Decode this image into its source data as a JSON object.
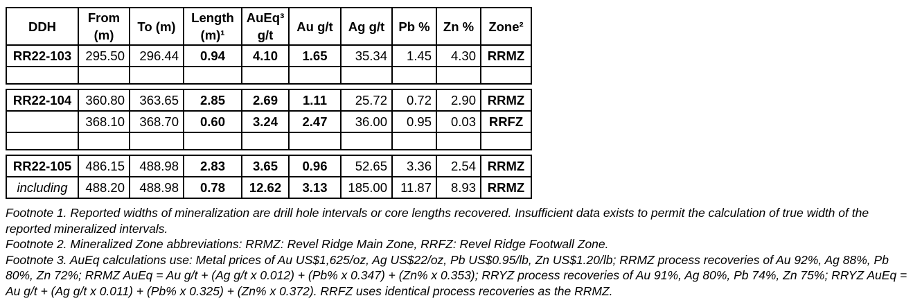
{
  "table": {
    "headers": [
      "DDH",
      "From\n(m)",
      "To (m)",
      "Length\n(m)¹",
      "AuEq³\ng/t",
      "Au g/t",
      "Ag g/t",
      "Pb %",
      "Zn %",
      "Zone²"
    ],
    "rows": {
      "r103": [
        "RR22-103",
        "295.50",
        "296.44",
        "0.94",
        "4.10",
        "1.65",
        "35.34",
        "1.45",
        "4.30",
        "RRMZ"
      ],
      "r104a": [
        "RR22-104",
        "360.80",
        "363.65",
        "2.85",
        "2.69",
        "1.11",
        "25.72",
        "0.72",
        "2.90",
        "RRMZ"
      ],
      "r104b": [
        "",
        "368.10",
        "368.70",
        "0.60",
        "3.24",
        "2.47",
        "36.00",
        "0.95",
        "0.03",
        "RRFZ"
      ],
      "r105a": [
        "RR22-105",
        "486.15",
        "488.98",
        "2.83",
        "3.65",
        "0.96",
        "52.65",
        "3.36",
        "2.54",
        "RRMZ"
      ],
      "r105b": [
        "including",
        "488.20",
        "488.98",
        "0.78",
        "12.62",
        "3.13",
        "185.00",
        "11.87",
        "8.93",
        "RRMZ"
      ]
    }
  },
  "footnotes": [
    "Footnote 1. Reported widths of mineralization are drill hole intervals or core lengths recovered. Insufficient data exists to permit the calculation of true width of the reported mineralized intervals.",
    "Footnote 2. Mineralized Zone abbreviations: RRMZ: Revel Ridge Main Zone, RRFZ: Revel Ridge Footwall Zone.",
    "Footnote 3. AuEq calculations use: Metal prices of Au US$1,625/oz, Ag US$22/oz, Pb US$0.95/lb, Zn US$1.20/lb; RRMZ process recoveries of Au 92%, Ag 88%, Pb 80%, Zn 72%; RRMZ AuEq = Au g/t + (Ag g/t x 0.012) + (Pb% x 0.347) + (Zn% x 0.353); RRYZ process recoveries of Au 91%, Ag 80%, Pb 74%, Zn 75%; RRYZ AuEq = Au g/t + (Ag g/t x 0.011) + (Pb% x 0.325) + (Zn% x 0.372). RRFZ uses identical process recoveries as the RRMZ."
  ],
  "colors": {
    "border": "#000000",
    "text": "#000000",
    "background": "#ffffff"
  }
}
